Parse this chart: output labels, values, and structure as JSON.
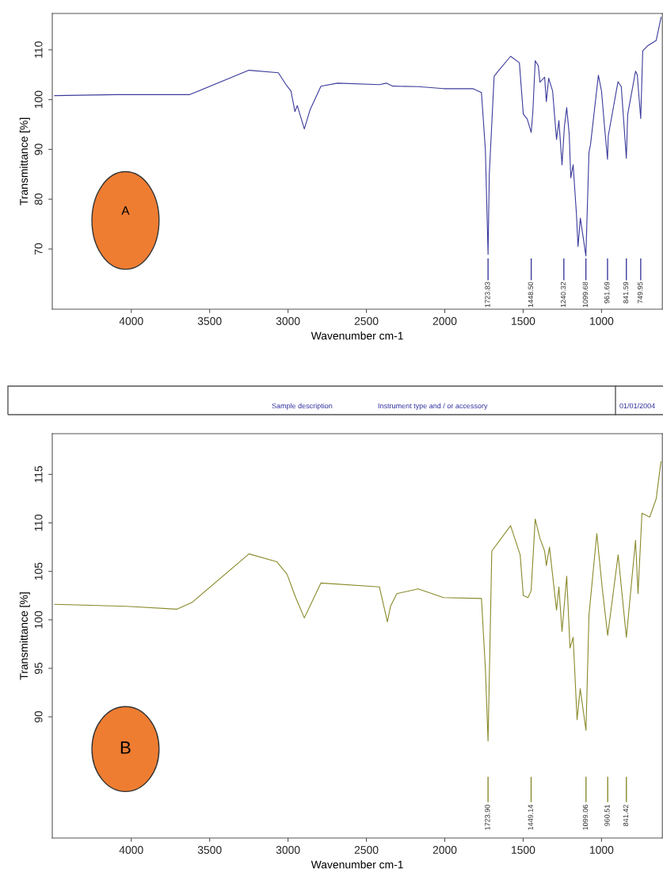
{
  "chart_data": [
    {
      "type": "line",
      "xlabel": "Wavenumber cm-1",
      "ylabel": "Transmittance [%]",
      "xlim": [
        4504,
        612
      ],
      "ylim": [
        57.9,
        117.3
      ],
      "xticks": [
        4000,
        3500,
        3000,
        2500,
        2000,
        1500,
        1000
      ],
      "yticks": [
        70,
        80,
        90,
        100,
        110
      ],
      "grid": false,
      "legend": false,
      "series": [
        {
          "color": "#3b3b9c",
          "x": [
            4489,
            4100,
            3627,
            3249,
            3062,
            3006,
            2981,
            2956,
            2941,
            2896,
            2860,
            2790,
            2684,
            2417,
            2371,
            2331,
            2170,
            2008,
            1821,
            1766,
            1741,
            1723.83,
            1716,
            1685,
            1660,
            1580,
            1524,
            1499,
            1474,
            1448.5,
            1438,
            1423,
            1403,
            1393,
            1363,
            1352,
            1337,
            1312,
            1287,
            1272,
            1252,
            1237,
            1222,
            1206,
            1196,
            1181,
            1160,
            1150,
            1135,
            1099.68,
            1080,
            1070,
            1020,
            1000,
            982,
            961.69,
            957,
            895,
            874,
            841.59,
            833,
            783,
            772,
            749.95,
            737,
            706,
            651,
            631,
            620
          ],
          "values": [
            100.8,
            101,
            101,
            105.9,
            105.4,
            102.7,
            101.7,
            97.6,
            98.8,
            94.1,
            97.9,
            102.7,
            103.3,
            103.0,
            103.3,
            102.7,
            102.6,
            102.2,
            102.2,
            101.4,
            90,
            68.9,
            85,
            104.7,
            105.7,
            108.7,
            107.4,
            97.1,
            96.1,
            93.4,
            97.6,
            107.8,
            106.8,
            103.5,
            104.5,
            99.6,
            104.3,
            101.7,
            92.0,
            95.8,
            86.9,
            94.5,
            98.4,
            93.0,
            84.3,
            86.9,
            77.0,
            70.5,
            76.2,
            68.6,
            89.4,
            91,
            104.9,
            101.7,
            95.0,
            88.0,
            92.7,
            103.6,
            102.6,
            88.2,
            97.0,
            105.7,
            105,
            96.2,
            109.8,
            110.8,
            111.9,
            114.9,
            116.5
          ]
        }
      ],
      "ref_lines": [
        {
          "axis": "x",
          "value": 1723.83,
          "label": "1723.83"
        },
        {
          "axis": "x",
          "value": 1448.5,
          "label": "1448.50"
        },
        {
          "axis": "x",
          "value": 1240.32,
          "label": "1240.32"
        },
        {
          "axis": "x",
          "value": 1099.68,
          "label": "1099.68"
        },
        {
          "axis": "x",
          "value": 961.69,
          "label": "961.69"
        },
        {
          "axis": "x",
          "value": 841.59,
          "label": "841.59"
        },
        {
          "axis": "x",
          "value": 749.95,
          "label": "749.95"
        }
      ],
      "annotations": [
        "A",
        "Sample description",
        "Instrument type and / or accessory",
        "01/01/2004"
      ]
    },
    {
      "type": "line",
      "xlabel": "Wavenumber cm-1",
      "ylabel": "Transmittance [%]",
      "xlim": [
        4504,
        612
      ],
      "ylim": [
        77.5,
        119.2
      ],
      "xticks": [
        4000,
        3500,
        3000,
        2500,
        2000,
        1500,
        1000
      ],
      "yticks": [
        90,
        95,
        100,
        105,
        110,
        115
      ],
      "grid": false,
      "legend": false,
      "series": [
        {
          "color": "#8a8a2c",
          "x": [
            4489,
            4030,
            3708,
            3612,
            3249,
            3072,
            3006,
            2951,
            2896,
            2790,
            2417,
            2366,
            2346,
            2306,
            2170,
            2008,
            1766,
            1741,
            1723.9,
            1700,
            1580,
            1519,
            1499,
            1469,
            1449.14,
            1423,
            1393,
            1363,
            1352,
            1332,
            1287,
            1272,
            1252,
            1222,
            1201,
            1181,
            1156,
            1136,
            1099.06,
            1080,
            1030,
            995,
            960.51,
            894,
            841.42,
            783,
            767,
            742,
            692,
            651,
            621
          ],
          "values": [
            101.6,
            101.4,
            101.1,
            101.8,
            106.8,
            106.0,
            104.7,
            102.3,
            100.2,
            103.8,
            103.4,
            99.8,
            101.4,
            102.7,
            103.2,
            102.3,
            102.2,
            95,
            87.5,
            107.1,
            109.7,
            106.7,
            102.5,
            102.3,
            103,
            110.4,
            108.4,
            107.1,
            105.6,
            107.5,
            101.0,
            103.4,
            98.8,
            104.5,
            97.1,
            98.2,
            89.7,
            92.9,
            88.6,
            100.5,
            108.9,
            103.2,
            98.4,
            106.7,
            98.2,
            108.2,
            102.7,
            111.0,
            110.6,
            112.5,
            116.3
          ]
        }
      ],
      "ref_lines": [
        {
          "axis": "x",
          "value": 1723.9,
          "label": "1723.90"
        },
        {
          "axis": "x",
          "value": 1449.14,
          "label": "1449.14"
        },
        {
          "axis": "x",
          "value": 1099.06,
          "label": "1099.06"
        },
        {
          "axis": "x",
          "value": 960.51,
          "label": "960.51"
        },
        {
          "axis": "x",
          "value": 841.42,
          "label": "841.42"
        }
      ],
      "annotations": [
        "B"
      ]
    }
  ]
}
